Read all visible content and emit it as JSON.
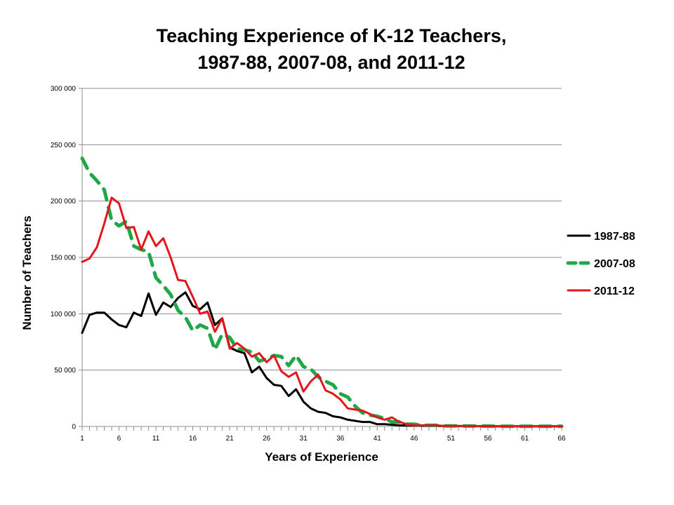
{
  "chart_data": {
    "type": "line",
    "title_lines": [
      "Teaching Experience of K-12 Teachers,",
      "1987-88, 2007-08, and 2011-12"
    ],
    "xlabel": "Years of Experience",
    "ylabel": "Number of Teachers",
    "xlim": [
      1,
      66
    ],
    "ylim": [
      0,
      300000
    ],
    "x_tick_labels": [
      "1",
      "6",
      "11",
      "16",
      "21",
      "26",
      "31",
      "36",
      "41",
      "46",
      "51",
      "56",
      "61",
      "66"
    ],
    "y_tick_labels": [
      "0",
      "50 000",
      "100 000",
      "150 000",
      "200 000",
      "250 000",
      "300 000"
    ],
    "grid": "horizontal",
    "legend_position": "right",
    "x": [
      1,
      2,
      3,
      4,
      5,
      6,
      7,
      8,
      9,
      10,
      11,
      12,
      13,
      14,
      15,
      16,
      17,
      18,
      19,
      20,
      21,
      22,
      23,
      24,
      25,
      26,
      27,
      28,
      29,
      30,
      31,
      32,
      33,
      34,
      35,
      36,
      37,
      38,
      39,
      40,
      41,
      42,
      43,
      44,
      45,
      46,
      47,
      48,
      49,
      50,
      51,
      52,
      53,
      54,
      55,
      56,
      57,
      58,
      59,
      60,
      61,
      62,
      63,
      64,
      65,
      66
    ],
    "series": [
      {
        "name": "1987-88",
        "color": "#000000",
        "dash": "solid",
        "values": [
          83000,
          99000,
          101000,
          101000,
          95000,
          90000,
          88000,
          101000,
          98000,
          118000,
          99000,
          110000,
          106000,
          114000,
          119000,
          107000,
          104000,
          110000,
          90000,
          96000,
          70000,
          67000,
          65000,
          48000,
          53000,
          43000,
          37000,
          36000,
          27000,
          33000,
          22000,
          16000,
          13000,
          12000,
          9000,
          8000,
          6000,
          5000,
          4000,
          4000,
          2000,
          2000,
          1500,
          1000,
          800,
          700,
          600,
          500,
          500,
          400,
          400,
          300,
          300,
          300,
          200,
          200,
          200,
          200,
          100,
          100,
          100,
          100,
          100,
          100,
          100,
          100
        ]
      },
      {
        "name": "2007-08",
        "color": "#1fa847",
        "dash": "dashed",
        "values": [
          238000,
          225000,
          218000,
          210000,
          183000,
          178000,
          182000,
          160000,
          157000,
          155000,
          132000,
          125000,
          117000,
          103000,
          97000,
          85000,
          90000,
          87000,
          68000,
          82000,
          79000,
          69000,
          68000,
          66000,
          58000,
          60000,
          63000,
          62000,
          54000,
          63000,
          53000,
          51000,
          44000,
          40000,
          37000,
          29000,
          26000,
          18000,
          12000,
          10000,
          9000,
          7000,
          4000,
          4000,
          2000,
          2000,
          1000,
          1000,
          1000,
          500,
          500,
          500,
          400,
          400,
          300,
          300,
          200,
          200,
          200,
          100,
          100,
          100,
          100,
          100,
          100,
          100
        ]
      },
      {
        "name": "2011-12",
        "color": "#e3161b",
        "dash": "solid",
        "values": [
          146000,
          149000,
          159000,
          180000,
          203000,
          198000,
          176000,
          177000,
          157000,
          173000,
          160000,
          167000,
          150000,
          130000,
          129000,
          115000,
          100000,
          102000,
          84000,
          96000,
          69000,
          74000,
          69000,
          62000,
          65000,
          57000,
          63000,
          49000,
          44000,
          48000,
          31000,
          40000,
          46000,
          32000,
          29000,
          24000,
          16000,
          15000,
          14000,
          11000,
          8000,
          6000,
          8000,
          4000,
          2000,
          1000,
          1000,
          1000,
          1000,
          500,
          500,
          500,
          500,
          400,
          300,
          300,
          200,
          200,
          200,
          100,
          100,
          100,
          100,
          100,
          100,
          100
        ]
      }
    ]
  }
}
